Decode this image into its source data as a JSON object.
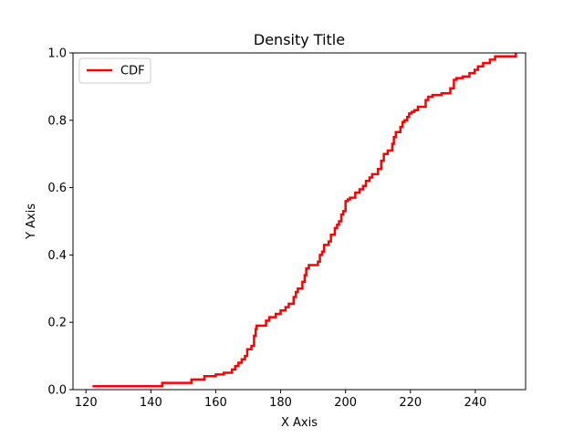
{
  "chart_data": {
    "type": "line",
    "title": "Density Title",
    "xlabel": "X Axis",
    "ylabel": "Y Axis",
    "xlim": [
      116,
      255.5
    ],
    "ylim": [
      0,
      1.0
    ],
    "xticks": [
      120,
      140,
      160,
      180,
      200,
      220,
      240
    ],
    "yticks": [
      0.0,
      0.2,
      0.4,
      0.6,
      0.8,
      1.0
    ],
    "xtick_labels": [
      "120",
      "140",
      "160",
      "180",
      "200",
      "220",
      "240"
    ],
    "ytick_labels": [
      "0.0",
      "0.2",
      "0.4",
      "0.6",
      "0.8",
      "1.0"
    ],
    "grid": false,
    "legend_position": "top-left",
    "series": [
      {
        "name": "CDF",
        "color": "#ff0000",
        "step": "post",
        "x": [
          122,
          143.5,
          152.5,
          156.5,
          160,
          162.5,
          163.5,
          165,
          166,
          167,
          168,
          169,
          169.7,
          171,
          171.8,
          172.3,
          172.6,
          175.5,
          176.5,
          178.5,
          180,
          181.5,
          182.5,
          184,
          184.7,
          185.3,
          186.7,
          187.4,
          187.9,
          188.7,
          191.5,
          192.1,
          192.8,
          193.4,
          194.8,
          195.5,
          196.7,
          197.4,
          198,
          198.7,
          199.3,
          200,
          200.7,
          201.4,
          203,
          204.3,
          205.4,
          206.3,
          207.4,
          208.2,
          210,
          211,
          211.8,
          213,
          214.4,
          214.9,
          215.5,
          216.9,
          217.6,
          218.2,
          219,
          219.6,
          220.4,
          221.2,
          222.3,
          224.7,
          225.5,
          226.1,
          226.8,
          229.6,
          232.3,
          233.4,
          234.2,
          236.1,
          238.2,
          239.8,
          240.8,
          242.4,
          244.5,
          246.1,
          249,
          252.5
        ],
        "y": [
          0.01,
          0.02,
          0.03,
          0.04,
          0.045,
          0.05,
          0.05,
          0.06,
          0.07,
          0.08,
          0.09,
          0.1,
          0.12,
          0.13,
          0.16,
          0.18,
          0.19,
          0.205,
          0.215,
          0.225,
          0.235,
          0.245,
          0.255,
          0.275,
          0.29,
          0.3,
          0.32,
          0.34,
          0.36,
          0.37,
          0.38,
          0.4,
          0.41,
          0.43,
          0.44,
          0.46,
          0.48,
          0.49,
          0.5,
          0.52,
          0.53,
          0.56,
          0.565,
          0.57,
          0.585,
          0.595,
          0.605,
          0.62,
          0.63,
          0.64,
          0.655,
          0.68,
          0.7,
          0.71,
          0.73,
          0.75,
          0.765,
          0.78,
          0.795,
          0.8,
          0.81,
          0.82,
          0.825,
          0.83,
          0.84,
          0.86,
          0.87,
          0.87,
          0.875,
          0.88,
          0.895,
          0.92,
          0.925,
          0.93,
          0.94,
          0.95,
          0.96,
          0.97,
          0.98,
          0.99,
          0.99,
          1.0
        ]
      }
    ]
  }
}
